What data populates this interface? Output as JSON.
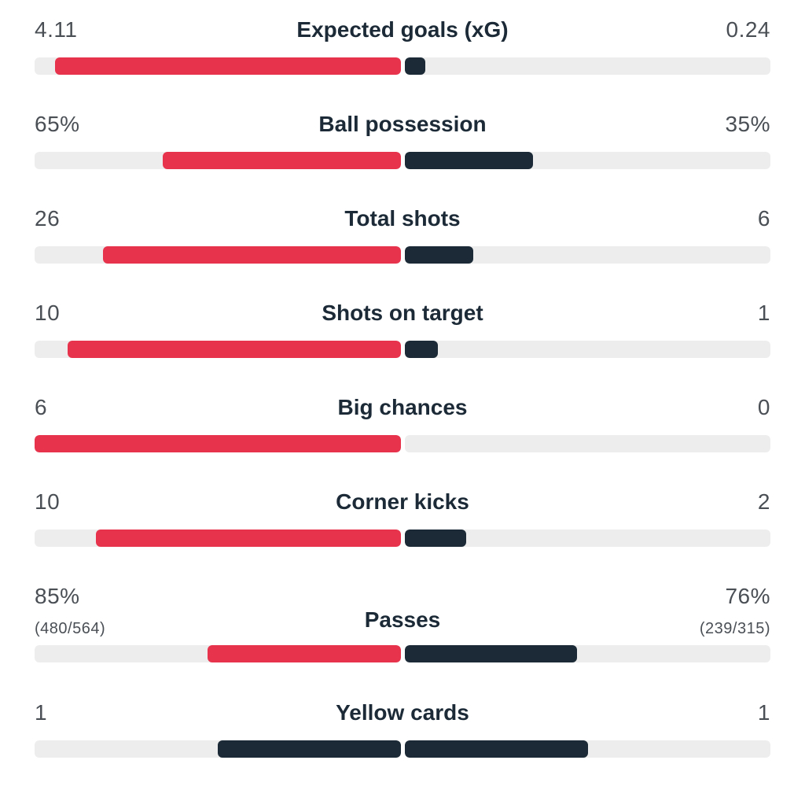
{
  "colors": {
    "home": "#e8334d",
    "away": "#1b2a36",
    "track": "#ededed"
  },
  "stats": [
    {
      "label": "Expected goals (xG)",
      "home": "4.11",
      "away": "0.24",
      "home_fill": 0.945,
      "away_fill": 0.055,
      "home_color": "home",
      "away_color": "away"
    },
    {
      "label": "Ball possession",
      "home": "65%",
      "away": "35%",
      "home_fill": 0.65,
      "away_fill": 0.35,
      "home_color": "home",
      "away_color": "away"
    },
    {
      "label": "Total shots",
      "home": "26",
      "away": "6",
      "home_fill": 0.813,
      "away_fill": 0.187,
      "home_color": "home",
      "away_color": "away"
    },
    {
      "label": "Shots on target",
      "home": "10",
      "away": "1",
      "home_fill": 0.909,
      "away_fill": 0.091,
      "home_color": "home",
      "away_color": "away"
    },
    {
      "label": "Big chances",
      "home": "6",
      "away": "0",
      "home_fill": 1.0,
      "away_fill": 0.0,
      "home_color": "home",
      "away_color": "away"
    },
    {
      "label": "Corner kicks",
      "home": "10",
      "away": "2",
      "home_fill": 0.833,
      "away_fill": 0.167,
      "home_color": "home",
      "away_color": "away"
    },
    {
      "label": "Passes",
      "home": "85%",
      "away": "76%",
      "home_sub": "(480/564)",
      "away_sub": "(239/315)",
      "home_fill": 0.528,
      "away_fill": 0.472,
      "home_color": "home",
      "away_color": "away"
    },
    {
      "label": "Yellow cards",
      "home": "1",
      "away": "1",
      "home_fill": 0.5,
      "away_fill": 0.5,
      "home_color": "away",
      "away_color": "away"
    }
  ]
}
